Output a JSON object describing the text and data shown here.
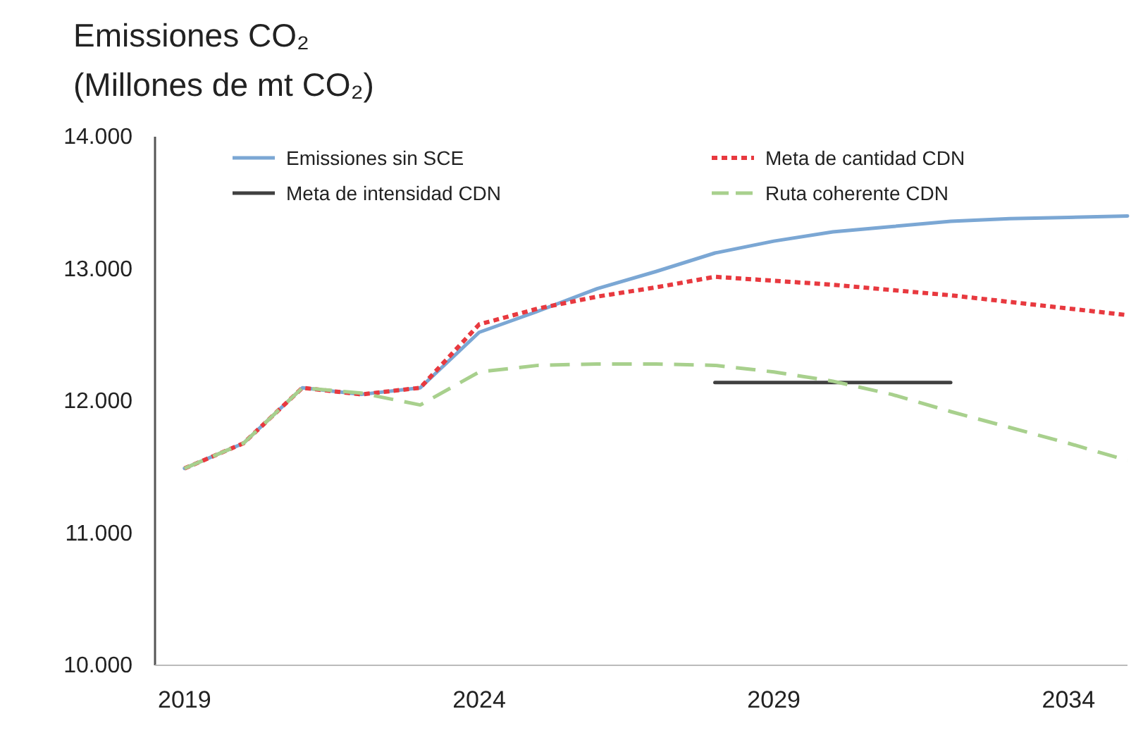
{
  "chart_data": {
    "type": "line",
    "title": "Emissiones CO₂",
    "subtitle": "(Millones de mt CO₂)",
    "x": [
      2019,
      2020,
      2021,
      2022,
      2023,
      2024,
      2025,
      2026,
      2027,
      2028,
      2029,
      2030,
      2031,
      2032,
      2033,
      2034,
      2035
    ],
    "xlim": [
      2018.5,
      2035
    ],
    "xticks": [
      2019,
      2024,
      2029,
      2034
    ],
    "ylim": [
      10000,
      14000
    ],
    "yticks": [
      {
        "value": 10000,
        "label": "10.000"
      },
      {
        "value": 11000,
        "label": "11.000"
      },
      {
        "value": 12000,
        "label": "12.000"
      },
      {
        "value": 13000,
        "label": "13.000"
      },
      {
        "value": 14000,
        "label": "14.000"
      }
    ],
    "series": [
      {
        "name": "Emissiones sin SCE",
        "color": "#7ba7d4",
        "line_style": "solid",
        "values": [
          11490,
          11680,
          12100,
          12050,
          12100,
          12520,
          12680,
          12850,
          12980,
          13120,
          13210,
          13280,
          13320,
          13360,
          13380,
          13390,
          13400
        ]
      },
      {
        "name": "Meta de cantidad CDN",
        "color": "#e8393f",
        "line_style": "dotted",
        "values": [
          11490,
          11680,
          12100,
          12050,
          12100,
          12580,
          12700,
          12790,
          12860,
          12940,
          12910,
          12880,
          12840,
          12800,
          12750,
          12700,
          12650
        ]
      },
      {
        "name": "Meta de intensidad CDN",
        "color": "#404040",
        "line_style": "solid",
        "x": [
          2028,
          2032
        ],
        "values": [
          12140,
          12140
        ]
      },
      {
        "name": "Ruta coherente CDN",
        "color": "#a8d08d",
        "line_style": "dashed",
        "values": [
          11490,
          11680,
          12100,
          12060,
          11970,
          12220,
          12270,
          12280,
          12280,
          12270,
          12220,
          12150,
          12050,
          11920,
          11800,
          11680,
          11550
        ]
      }
    ],
    "legend": "top",
    "grid": false,
    "marker": "none"
  }
}
